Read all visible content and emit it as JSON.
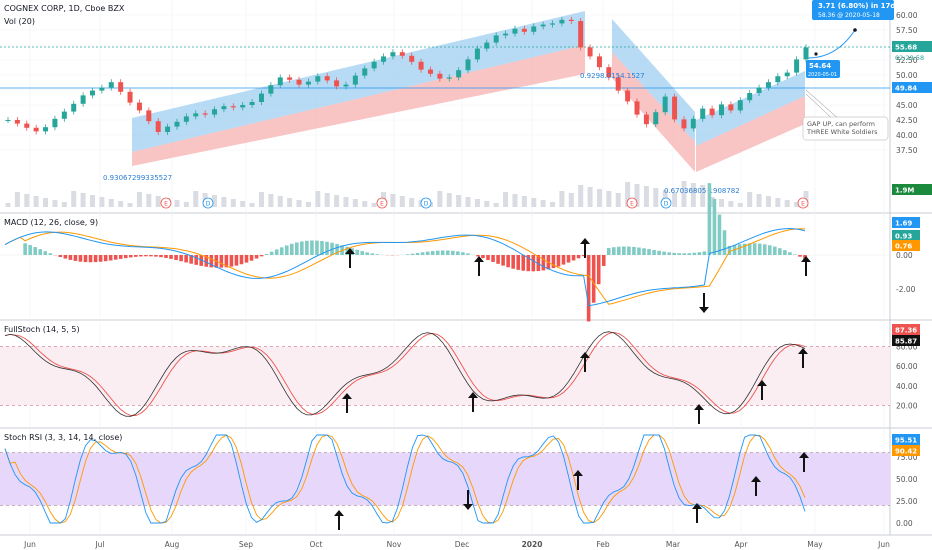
{
  "header": {
    "symbol_title": "COGNEX CORP, 1D, Cboe BZX",
    "volume_label": "Vol (20)"
  },
  "colors": {
    "up": "#26a69a",
    "down": "#ef5350",
    "channel_blue": "#9fcdf2",
    "channel_red": "#f6b0b0",
    "line_blue": "#2196f3",
    "line_orange": "#ff9800",
    "accent": "#2196f3"
  },
  "chart_data": [
    {
      "type": "line",
      "name": "price",
      "x_ticks": [
        "Jun",
        "Jul",
        "Aug",
        "Sep",
        "Oct",
        "Nov",
        "Dec",
        "2020",
        "Feb",
        "Mar",
        "Apr",
        "May",
        "Jun"
      ],
      "y_ticks": [
        "60.00",
        "57.50",
        "55.00",
        "52.50",
        "50.00",
        "47.50",
        "45.00",
        "42.50",
        "40.00",
        "37.50"
      ],
      "ylim": [
        35.5,
        62
      ],
      "close_series": [
        42.5,
        41.9,
        41.2,
        40.6,
        41.3,
        42.7,
        43.9,
        45.2,
        46.6,
        47.4,
        47.9,
        48.8,
        47.2,
        45.4,
        44.1,
        42.3,
        40.5,
        41.4,
        42.2,
        43.1,
        43.6,
        43.4,
        44.3,
        44.8,
        44.6,
        45.0,
        45.5,
        46.9,
        48.3,
        49.6,
        49.2,
        48.4,
        48.9,
        49.8,
        49.1,
        48.1,
        48.4,
        49.9,
        51.1,
        52.2,
        53.1,
        53.8,
        53.2,
        52.2,
        50.9,
        50.2,
        49.4,
        49.6,
        50.8,
        52.6,
        54.4,
        55.4,
        56.6,
        56.9,
        57.7,
        57.2,
        58.1,
        58.4,
        58.6,
        59.2,
        59.0,
        54.6,
        53.1,
        51.3,
        49.6,
        47.4,
        45.6,
        43.4,
        41.8,
        43.8,
        46.4,
        42.6,
        41.1,
        42.7,
        44.4,
        43.3,
        45.1,
        44.1,
        45.8,
        47.0,
        47.9,
        48.8,
        49.8,
        50.4,
        52.6,
        54.6
      ],
      "price_tags": [
        "55.68",
        "49.84",
        "1.9M"
      ],
      "price_tag_clock": "02:29:58",
      "price_tag_last": "54.64",
      "price_tag_last_date": "2020-05-01",
      "projection_line1": "3.71 (6.80%) in 17d",
      "projection_line2": "58.36 @ 2020-05-18",
      "annotation_line1": "GAP UP, can perform",
      "annotation_line2": "THREE White Soldiers",
      "ratio_labels": [
        "0.9306729933552‌7",
        "0.9298.0154.1527",
        "0.67036805 1908782"
      ],
      "event_markers": [
        "E",
        "D",
        "E",
        "D",
        "E",
        "D",
        "E"
      ]
    },
    {
      "type": "line",
      "name": "macd",
      "label": "MACD (12, 26, close, 9)",
      "y_ticks": [
        "0.00",
        "-2.00"
      ],
      "values": [
        "1.69",
        "0.93",
        "0.76"
      ]
    },
    {
      "type": "line",
      "name": "fullstoch",
      "label": "FullStoch (14, 5, 5)",
      "y_ticks": [
        "80.00",
        "60.00",
        "40.00",
        "20.00"
      ],
      "values": [
        "87.36",
        "85.87"
      ]
    },
    {
      "type": "line",
      "name": "stochrsi",
      "label": "Stoch RSI (3, 3, 14, 14, close)",
      "y_ticks": [
        "75.00",
        "50.00",
        "25.00",
        "0.00"
      ],
      "values": [
        "95.51",
        "90.42"
      ]
    }
  ]
}
